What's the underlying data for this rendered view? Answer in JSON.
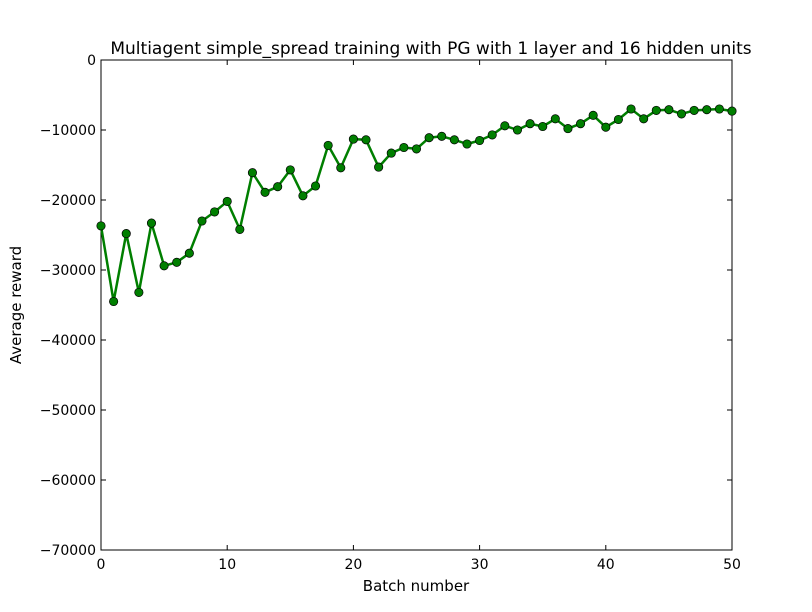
{
  "chart_data": {
    "type": "line",
    "title": "Multiagent simple_spread training with PG with 1 layer and 16 hidden units",
    "xlabel": "Batch number",
    "ylabel": "Average reward",
    "xlim": [
      0,
      50
    ],
    "ylim": [
      -70000,
      0
    ],
    "xticks": [
      0,
      10,
      20,
      30,
      40,
      50
    ],
    "xtick_labels": [
      "0",
      "10",
      "20",
      "30",
      "40",
      "50"
    ],
    "yticks": [
      0,
      -10000,
      -20000,
      -30000,
      -40000,
      -50000,
      -60000,
      -70000
    ],
    "ytick_labels": [
      "0",
      "−10000",
      "−20000",
      "−30000",
      "−40000",
      "−50000",
      "−60000",
      "−70000"
    ],
    "grid": false,
    "series": [
      {
        "color": "#007f00",
        "marker": "circle",
        "x": [
          0,
          1,
          2,
          3,
          4,
          5,
          6,
          7,
          8,
          9,
          10,
          11,
          12,
          13,
          14,
          15,
          16,
          17,
          18,
          19,
          20,
          21,
          22,
          23,
          24,
          25,
          26,
          27,
          28,
          29,
          30,
          31,
          32,
          33,
          34,
          35,
          36,
          37,
          38,
          39,
          40,
          41,
          42,
          43,
          44,
          45,
          46,
          47,
          48,
          49,
          50
        ],
        "y": [
          -23700,
          -34500,
          -24800,
          -33200,
          -23300,
          -29400,
          -28900,
          -27600,
          -23000,
          -21700,
          -20200,
          -24200,
          -16100,
          -18900,
          -18100,
          -15700,
          -19400,
          -18000,
          -12200,
          -15400,
          -11300,
          -11400,
          -15300,
          -13300,
          -12500,
          -12700,
          -11100,
          -10900,
          -11400,
          -12000,
          -11500,
          -10700,
          -9400,
          -10000,
          -9100,
          -9500,
          -8400,
          -9800,
          -9100,
          -7900,
          -9600,
          -8500,
          -7000,
          -8400,
          -7200,
          -7100,
          -7700,
          -7200,
          -7100,
          -7000,
          -7300
        ]
      }
    ]
  }
}
